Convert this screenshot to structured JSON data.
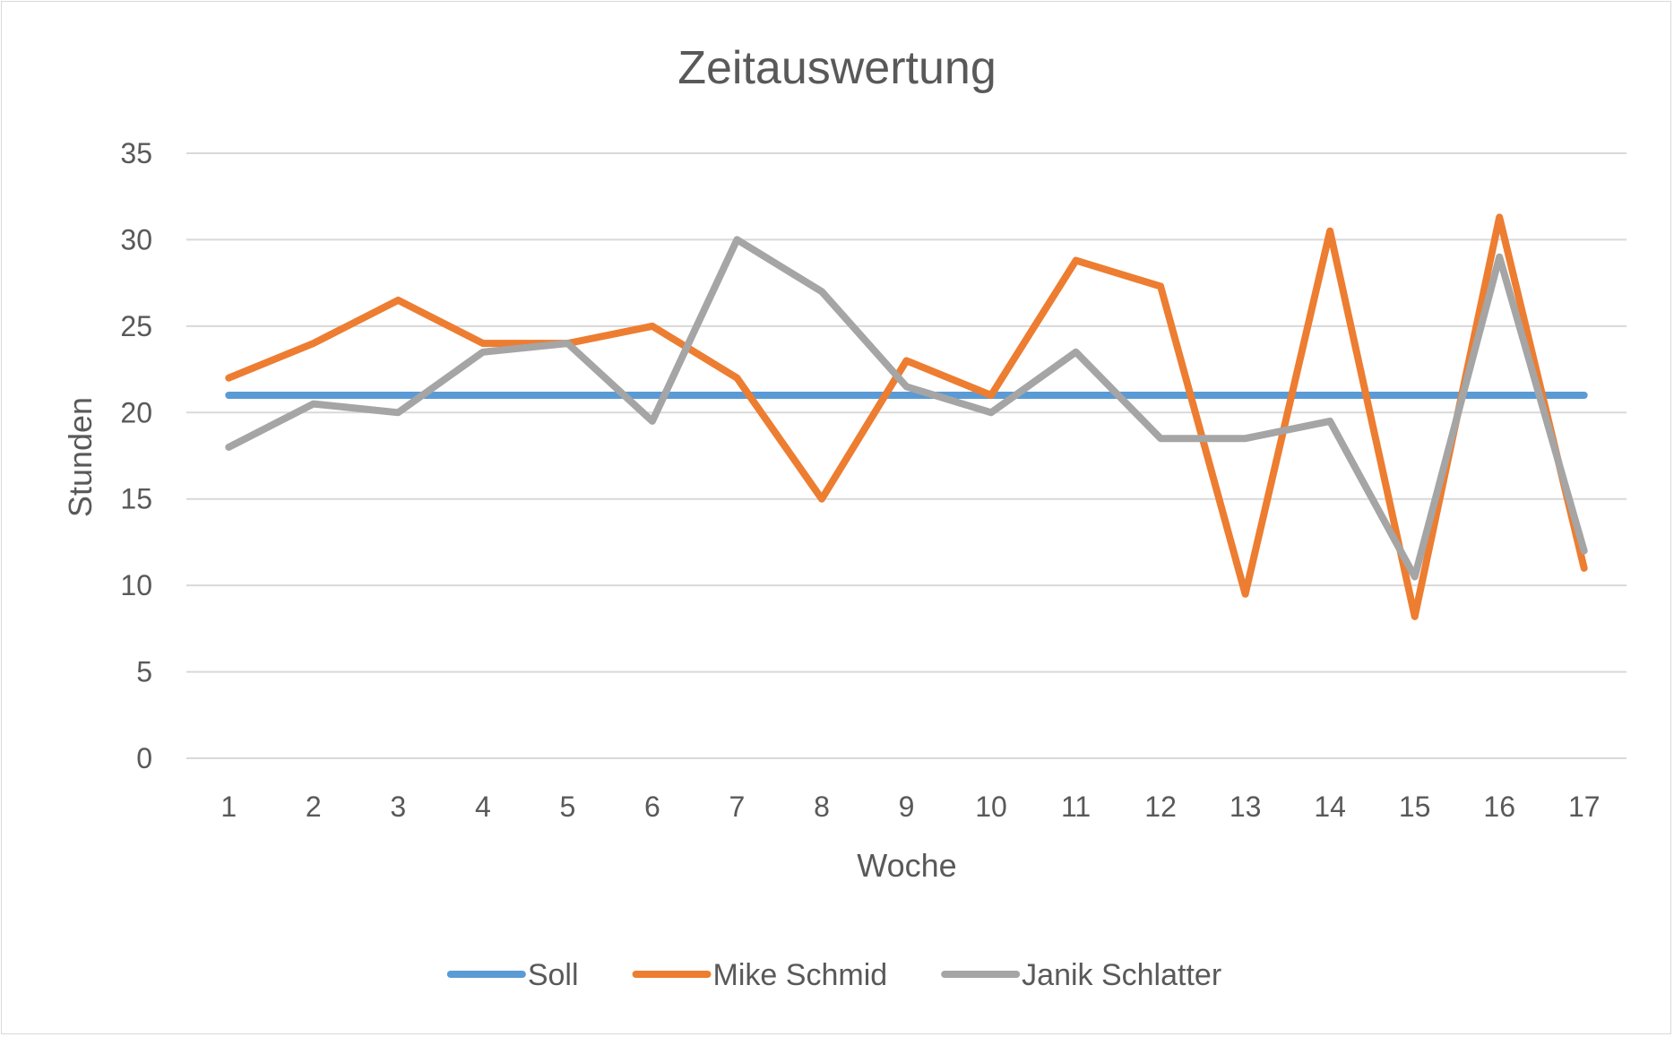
{
  "chart_data": {
    "type": "line",
    "title": "Zeitauswertung",
    "xlabel": "Woche",
    "ylabel": "Stunden",
    "categories": [
      "1",
      "2",
      "3",
      "4",
      "5",
      "6",
      "7",
      "8",
      "9",
      "10",
      "11",
      "12",
      "13",
      "14",
      "15",
      "16",
      "17"
    ],
    "ylim": [
      0,
      35
    ],
    "yticks": [
      "0",
      "5",
      "10",
      "15",
      "20",
      "25",
      "30",
      "35"
    ],
    "grid": true,
    "legend_position": "bottom",
    "series": [
      {
        "name": "Soll",
        "color": "#5b9bd5",
        "values": [
          21,
          21,
          21,
          21,
          21,
          21,
          21,
          21,
          21,
          21,
          21,
          21,
          21,
          21,
          21,
          21,
          21
        ]
      },
      {
        "name": "Mike Schmid",
        "color": "#ed7d31",
        "values": [
          22,
          24,
          26.5,
          24,
          24,
          25,
          22,
          15,
          23,
          21,
          28.8,
          27.3,
          9.5,
          30.5,
          8.2,
          31.3,
          11
        ]
      },
      {
        "name": "Janik Schlatter",
        "color": "#a5a5a5",
        "values": [
          18,
          20.5,
          20,
          23.5,
          24,
          19.5,
          30,
          27,
          21.5,
          20,
          23.5,
          18.5,
          18.5,
          19.5,
          10.5,
          29,
          12
        ]
      }
    ]
  }
}
